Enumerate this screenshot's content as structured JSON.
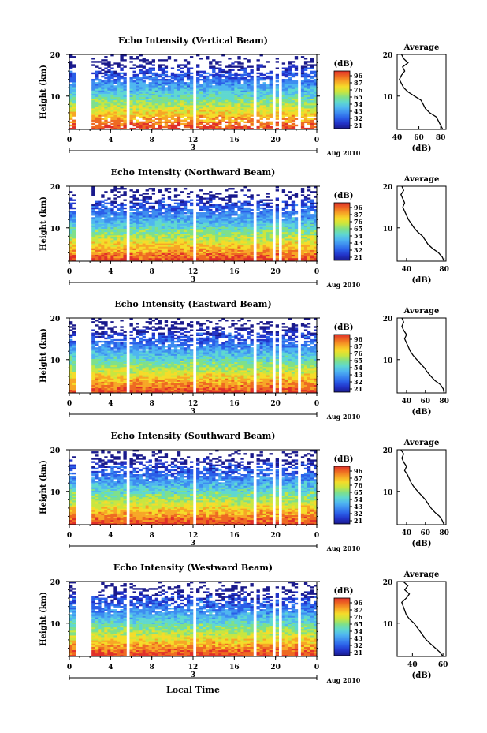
{
  "figure": {
    "x_axis_title": "Local Time",
    "day_label": "3",
    "date_label": "Aug 2010"
  },
  "colorbar": {
    "unit_label": "(dB)",
    "ticks": [
      "96",
      "87",
      "76",
      "65",
      "54",
      "43",
      "32",
      "21"
    ],
    "colors": [
      "#1a1a8c",
      "#2233c8",
      "#2a5ee8",
      "#3d8cf0",
      "#4fb6f0",
      "#5fd8d0",
      "#7fe08a",
      "#c8e640",
      "#f5dc2a",
      "#f7a626",
      "#ee6a22",
      "#e0302a"
    ]
  },
  "chart_data": [
    {
      "type": "heatmap",
      "title": "Echo Intensity (Vertical Beam)",
      "xlabel": "Local Time",
      "ylabel": "Height (km)",
      "x_ticks": [
        "0",
        "4",
        "8",
        "12",
        "16",
        "20",
        "0"
      ],
      "xlim": [
        0,
        24
      ],
      "y_ticks": [
        "20",
        "10"
      ],
      "ylim": [
        2,
        20
      ],
      "colorbar": {
        "label": "(dB)",
        "range": [
          21,
          96
        ]
      },
      "data_gaps_hours": [
        [
          0.7,
          2.0
        ],
        [
          4.2,
          4.4
        ],
        [
          5.4,
          5.7
        ],
        [
          11.9,
          12.2
        ],
        [
          17.8,
          18.0
        ],
        [
          19.7,
          20.0
        ],
        [
          20.4,
          20.6
        ],
        [
          22.3,
          22.6
        ]
      ],
      "profile": {
        "title": "Average",
        "xlabel": "(dB)",
        "x_ticks": [
          "40",
          "60",
          "80"
        ],
        "xlim": [
          40,
          85
        ],
        "ylim": [
          2,
          20
        ],
        "y_ticks": [
          "20",
          "10"
        ],
        "heights_km": [
          2,
          3,
          4,
          5,
          6,
          7,
          8,
          9,
          10,
          11,
          12,
          13,
          14,
          15,
          16,
          17,
          18,
          19,
          20
        ],
        "values_db": [
          82,
          80,
          78,
          76,
          70,
          66,
          64,
          62,
          56,
          50,
          46,
          44,
          42,
          44,
          47,
          45,
          50,
          46,
          44
        ]
      }
    },
    {
      "type": "heatmap",
      "title": "Echo Intensity (Northward Beam)",
      "xlabel": "Local Time",
      "ylabel": "Height (km)",
      "x_ticks": [
        "0",
        "4",
        "8",
        "12",
        "16",
        "20",
        "0"
      ],
      "xlim": [
        0,
        24
      ],
      "y_ticks": [
        "20",
        "10"
      ],
      "ylim": [
        2,
        20
      ],
      "colorbar": {
        "label": "(dB)",
        "range": [
          21,
          96
        ]
      },
      "data_gaps_hours": [
        [
          0.7,
          2.0
        ],
        [
          4.2,
          4.4
        ],
        [
          5.4,
          5.7
        ],
        [
          11.9,
          12.2
        ],
        [
          17.8,
          18.0
        ],
        [
          19.7,
          20.0
        ],
        [
          20.4,
          20.6
        ],
        [
          22.3,
          22.6
        ]
      ],
      "profile": {
        "title": "Average",
        "xlabel": "(dB)",
        "x_ticks": [
          "40",
          "80"
        ],
        "xlim": [
          30,
          82
        ],
        "ylim": [
          2,
          20
        ],
        "y_ticks": [
          "20",
          "10"
        ],
        "heights_km": [
          2,
          3,
          4,
          5,
          6,
          7,
          8,
          9,
          10,
          11,
          12,
          13,
          14,
          15,
          16,
          17,
          18,
          19,
          20
        ],
        "values_db": [
          80,
          78,
          74,
          68,
          63,
          60,
          57,
          52,
          48,
          45,
          42,
          40,
          38,
          36,
          38,
          36,
          34,
          37,
          35
        ]
      }
    },
    {
      "type": "heatmap",
      "title": "Echo Intensity (Eastward Beam)",
      "xlabel": "Local Time",
      "ylabel": "Height (km)",
      "x_ticks": [
        "0",
        "4",
        "8",
        "12",
        "16",
        "20",
        "0"
      ],
      "xlim": [
        0,
        24
      ],
      "y_ticks": [
        "20",
        "10"
      ],
      "ylim": [
        2,
        20
      ],
      "colorbar": {
        "label": "(dB)",
        "range": [
          21,
          96
        ]
      },
      "data_gaps_hours": [
        [
          0.7,
          2.0
        ],
        [
          4.2,
          4.4
        ],
        [
          5.4,
          5.7
        ],
        [
          11.9,
          12.2
        ],
        [
          17.8,
          18.0
        ],
        [
          19.7,
          20.0
        ],
        [
          20.4,
          20.6
        ],
        [
          22.3,
          22.6
        ]
      ],
      "profile": {
        "title": "Average",
        "xlabel": "(dB)",
        "x_ticks": [
          "40",
          "60",
          "80"
        ],
        "xlim": [
          30,
          82
        ],
        "ylim": [
          2,
          20
        ],
        "y_ticks": [
          "20",
          "10"
        ],
        "heights_km": [
          2,
          3,
          4,
          5,
          6,
          7,
          8,
          9,
          10,
          11,
          12,
          13,
          14,
          15,
          16,
          17,
          18,
          19,
          20
        ],
        "values_db": [
          80,
          79,
          76,
          70,
          66,
          62,
          59,
          55,
          51,
          47,
          44,
          42,
          40,
          38,
          40,
          37,
          35,
          37,
          35
        ]
      }
    },
    {
      "type": "heatmap",
      "title": "Echo Intensity (Southward Beam)",
      "xlabel": "Local Time",
      "ylabel": "Height (km)",
      "x_ticks": [
        "0",
        "4",
        "8",
        "12",
        "16",
        "20",
        "0"
      ],
      "xlim": [
        0,
        24
      ],
      "y_ticks": [
        "20",
        "10"
      ],
      "ylim": [
        2,
        20
      ],
      "colorbar": {
        "label": "(dB)",
        "range": [
          21,
          96
        ]
      },
      "data_gaps_hours": [
        [
          0.7,
          2.0
        ],
        [
          4.2,
          4.4
        ],
        [
          5.4,
          5.7
        ],
        [
          11.9,
          12.2
        ],
        [
          17.8,
          18.0
        ],
        [
          19.7,
          20.0
        ],
        [
          20.4,
          20.6
        ],
        [
          22.3,
          22.6
        ]
      ],
      "profile": {
        "title": "Average",
        "xlabel": "(dB)",
        "x_ticks": [
          "40",
          "60",
          "80"
        ],
        "xlim": [
          30,
          82
        ],
        "ylim": [
          2,
          20
        ],
        "y_ticks": [
          "20",
          "10"
        ],
        "heights_km": [
          2,
          3,
          4,
          5,
          6,
          7,
          8,
          9,
          10,
          11,
          12,
          13,
          14,
          15,
          16,
          17,
          18,
          19,
          20
        ],
        "values_db": [
          80,
          78,
          75,
          70,
          66,
          63,
          60,
          56,
          52,
          48,
          45,
          43,
          41,
          38,
          40,
          37,
          35,
          37,
          34
        ]
      }
    },
    {
      "type": "heatmap",
      "title": "Echo Intensity (Westward Beam)",
      "xlabel": "Local Time",
      "ylabel": "Height (km)",
      "x_ticks": [
        "0",
        "4",
        "8",
        "12",
        "16",
        "20",
        "0"
      ],
      "xlim": [
        0,
        24
      ],
      "y_ticks": [
        "20",
        "10"
      ],
      "ylim": [
        2,
        20
      ],
      "colorbar": {
        "label": "(dB)",
        "range": [
          21,
          96
        ]
      },
      "data_gaps_hours": [
        [
          0.7,
          2.0
        ],
        [
          4.2,
          4.4
        ],
        [
          5.4,
          5.7
        ],
        [
          11.9,
          12.2
        ],
        [
          17.8,
          18.0
        ],
        [
          19.7,
          20.0
        ],
        [
          20.4,
          20.6
        ],
        [
          22.3,
          22.6
        ]
      ],
      "profile": {
        "title": "Average",
        "xlabel": "(dB)",
        "x_ticks": [
          "40",
          "60"
        ],
        "xlim": [
          30,
          62
        ],
        "ylim": [
          2,
          20
        ],
        "y_ticks": [
          "20",
          "10"
        ],
        "heights_km": [
          2,
          3,
          4,
          5,
          6,
          7,
          8,
          9,
          10,
          11,
          12,
          13,
          14,
          15,
          16,
          17,
          18,
          19,
          20
        ],
        "values_db": [
          60,
          58,
          55,
          52,
          49,
          47,
          45,
          43,
          41,
          38,
          36,
          35,
          34,
          33,
          36,
          38,
          35,
          37,
          34
        ]
      }
    }
  ]
}
